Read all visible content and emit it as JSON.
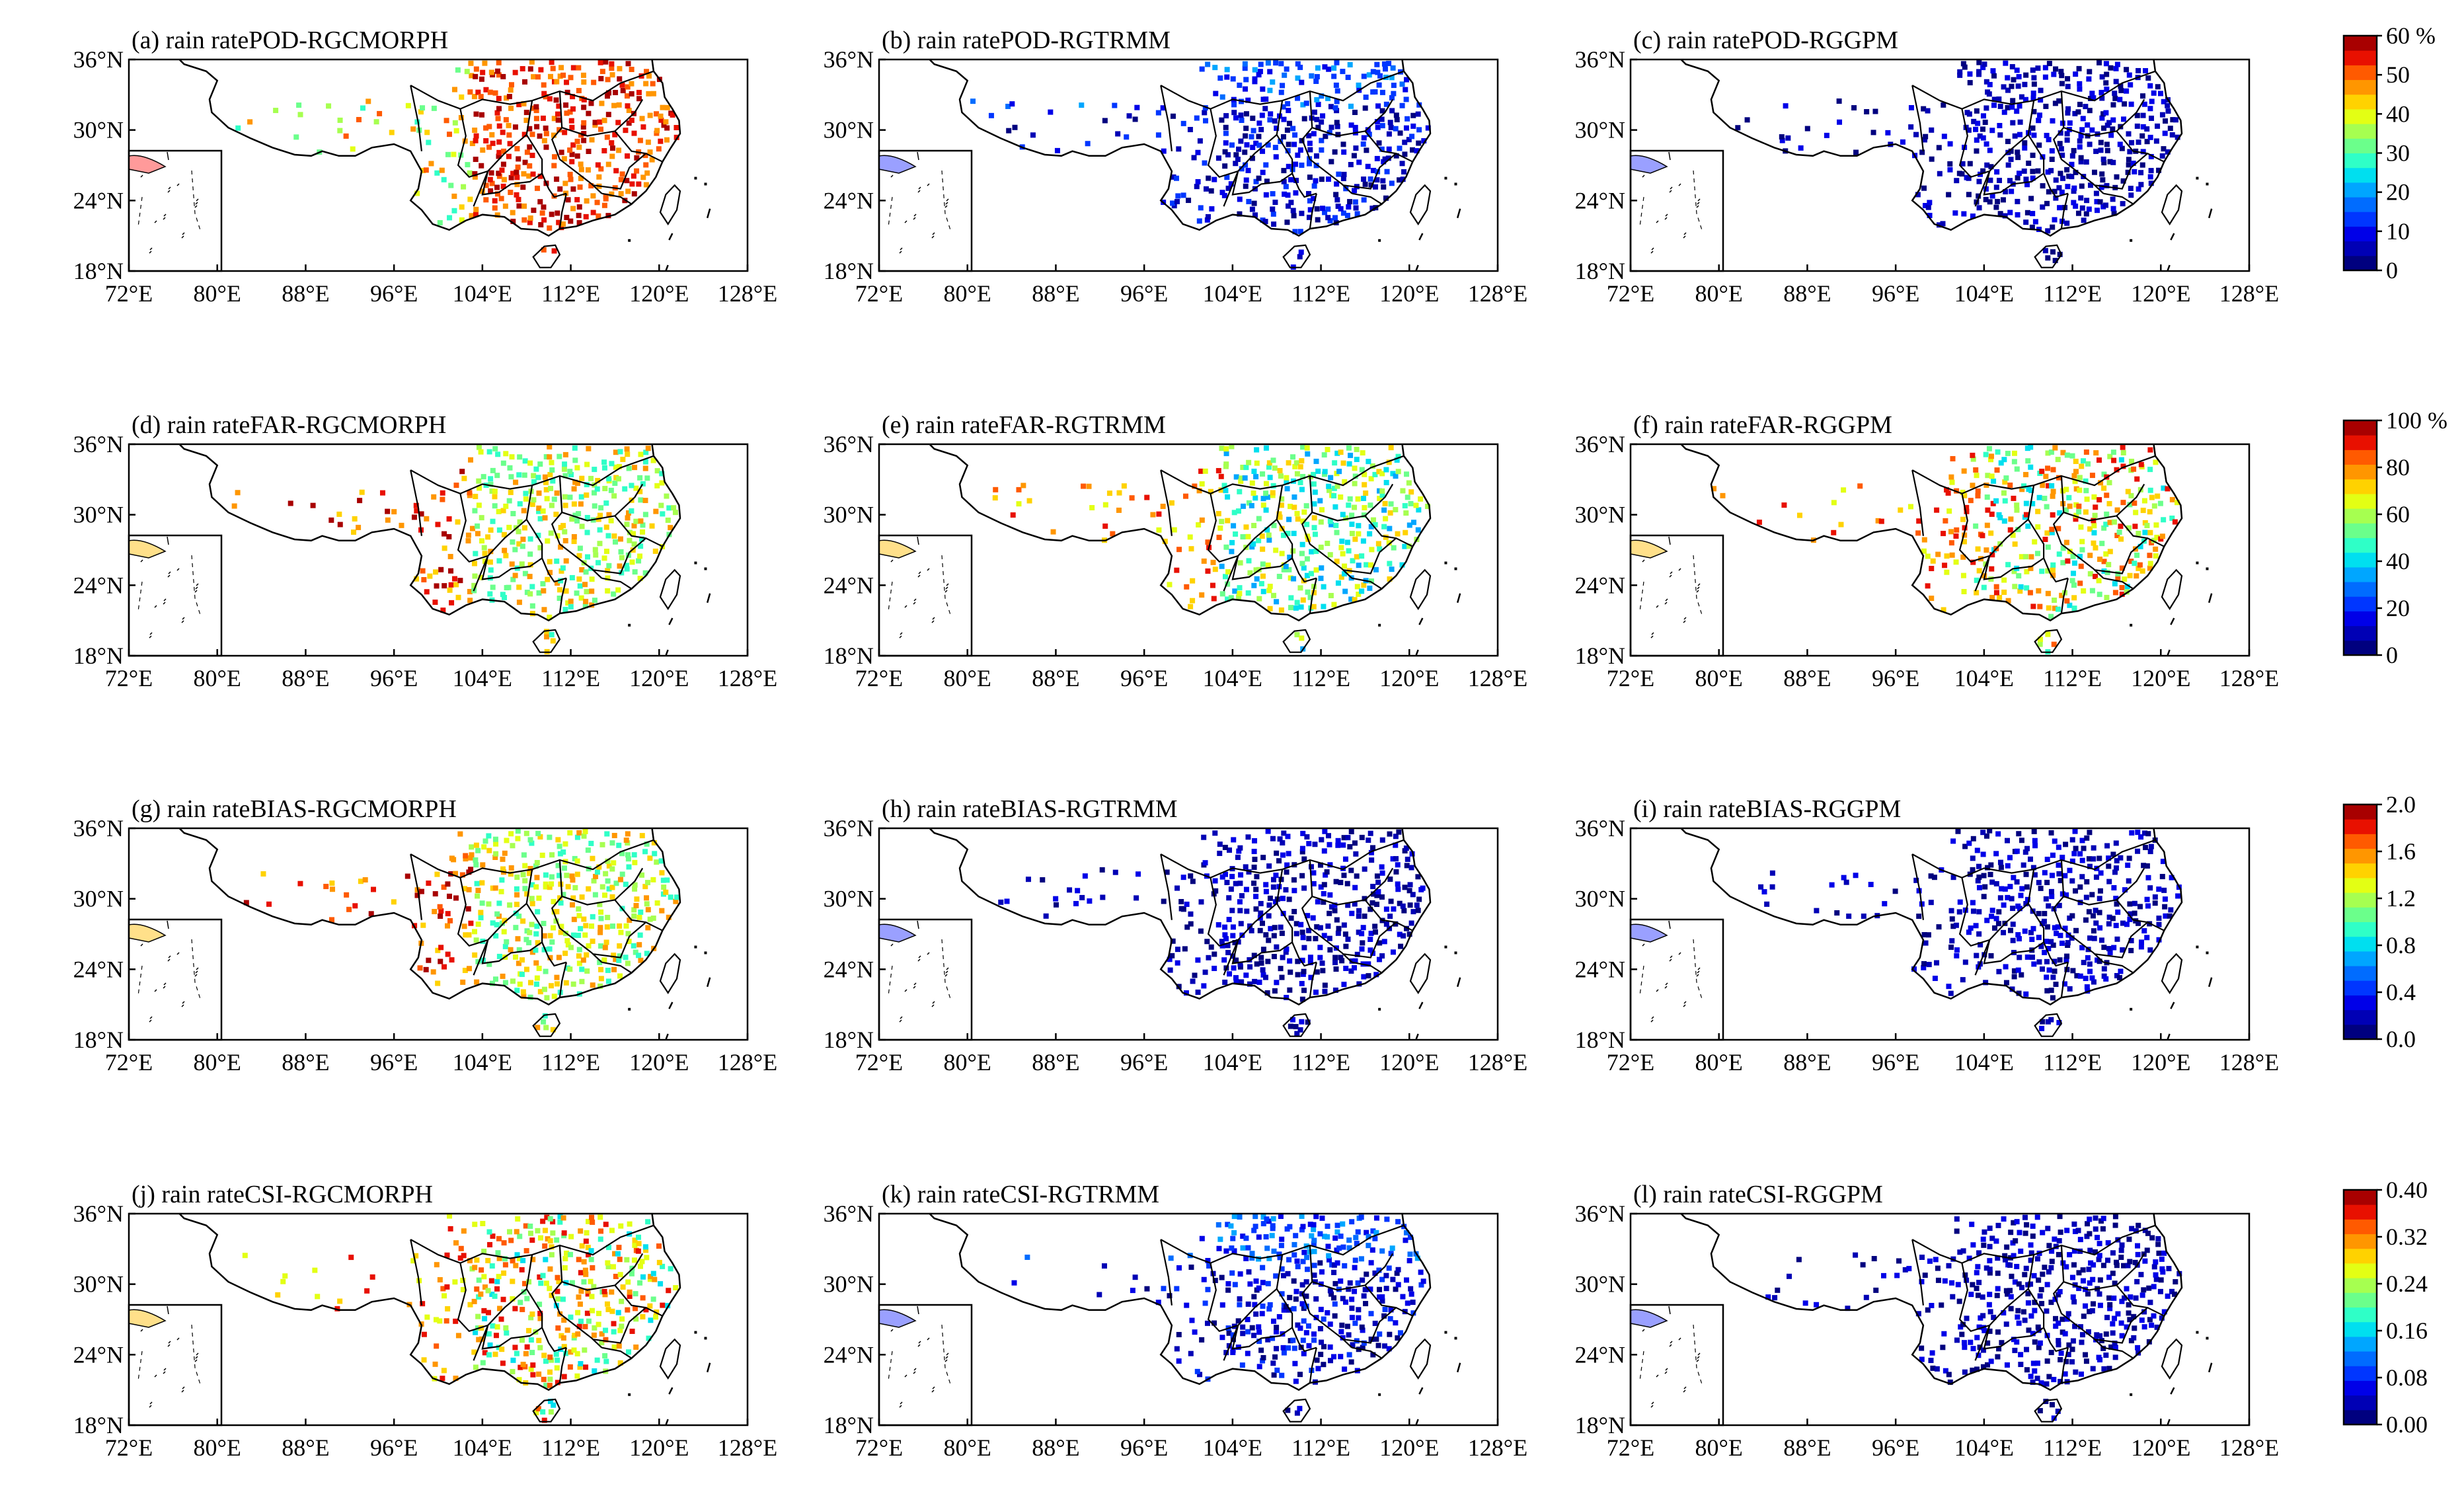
{
  "figure": {
    "title_prefix": "rain rate",
    "x_ticks": [
      "72°E",
      "80°E",
      "88°E",
      "96°E",
      "104°E",
      "112°E",
      "120°E",
      "128°E"
    ],
    "y_ticks": [
      "36°N",
      "30°N",
      "24°N",
      "18°N"
    ],
    "lon_range": [
      72,
      128
    ],
    "lat_range": [
      18,
      36
    ]
  },
  "rows": [
    {
      "metric": "POD",
      "panels": [
        {
          "title": "(a) rain ratePOD-RGCMORPH",
          "level": "high"
        },
        {
          "title": "(b) rain ratePOD-RGTRMM",
          "level": "low"
        },
        {
          "title": "(c) rain ratePOD-RGGPM",
          "level": "verylow"
        }
      ],
      "colorbar": {
        "labels": [
          "60 %",
          "50",
          "40",
          "30",
          "20",
          "10",
          "0"
        ],
        "colors": [
          "#00007f",
          "#0000b5",
          "#0000e8",
          "#0036ff",
          "#006cff",
          "#00a6ff",
          "#00dfef",
          "#2fffc7",
          "#6bff8b",
          "#a6ff50",
          "#e3ff14",
          "#ffd200",
          "#ff9600",
          "#ff5a00",
          "#e81000",
          "#a80000"
        ]
      }
    },
    {
      "metric": "FAR",
      "panels": [
        {
          "title": "(d) rain rateFAR-RGCMORPH",
          "level": "mid"
        },
        {
          "title": "(e) rain rateFAR-RGTRMM",
          "level": "midlow"
        },
        {
          "title": "(f) rain rateFAR-RGGPM",
          "level": "midhigh"
        }
      ],
      "colorbar": {
        "labels": [
          "100 %",
          "80",
          "60",
          "40",
          "20",
          "0"
        ],
        "colors": [
          "#00007f",
          "#0000b5",
          "#0000e8",
          "#0036ff",
          "#006cff",
          "#00a6ff",
          "#00dfef",
          "#2fffc7",
          "#6bff8b",
          "#a6ff50",
          "#e3ff14",
          "#ffd200",
          "#ff9600",
          "#ff5a00",
          "#e81000",
          "#a80000"
        ]
      }
    },
    {
      "metric": "BIAS",
      "panels": [
        {
          "title": "(g) rain rateBIAS-RGCMORPH",
          "level": "mid"
        },
        {
          "title": "(h) rain rateBIAS-RGTRMM",
          "level": "verylow"
        },
        {
          "title": "(i) rain rateBIAS-RGGPM",
          "level": "verylow"
        }
      ],
      "colorbar": {
        "labels": [
          "2.0",
          "1.6",
          "1.2",
          "0.8",
          "0.4",
          "0.0"
        ],
        "colors": [
          "#00007f",
          "#0000b5",
          "#0000e8",
          "#0036ff",
          "#006cff",
          "#00a6ff",
          "#00dfef",
          "#2fffc7",
          "#6bff8b",
          "#a6ff50",
          "#e3ff14",
          "#ffd200",
          "#ff9600",
          "#ff5a00",
          "#e81000",
          "#a80000"
        ]
      }
    },
    {
      "metric": "CSI",
      "panels": [
        {
          "title": "(j) rain rateCSI-RGCMORPH",
          "level": "midhigh"
        },
        {
          "title": "(k) rain rateCSI-RGTRMM",
          "level": "low"
        },
        {
          "title": "(l) rain rateCSI-RGGPM",
          "level": "verylow"
        }
      ],
      "colorbar": {
        "labels": [
          "0.40",
          "0.32",
          "0.24",
          "0.16",
          "0.08",
          "0.00"
        ],
        "colors": [
          "#00007f",
          "#0000b5",
          "#0000e8",
          "#0036ff",
          "#006cff",
          "#00a6ff",
          "#00dfef",
          "#2fffc7",
          "#6bff8b",
          "#a6ff50",
          "#e3ff14",
          "#ffd200",
          "#ff9600",
          "#ff5a00",
          "#e81000",
          "#a80000"
        ]
      }
    }
  ],
  "colors": {
    "frame": "#000000",
    "background": "#ffffff",
    "boundary": "#000000"
  }
}
